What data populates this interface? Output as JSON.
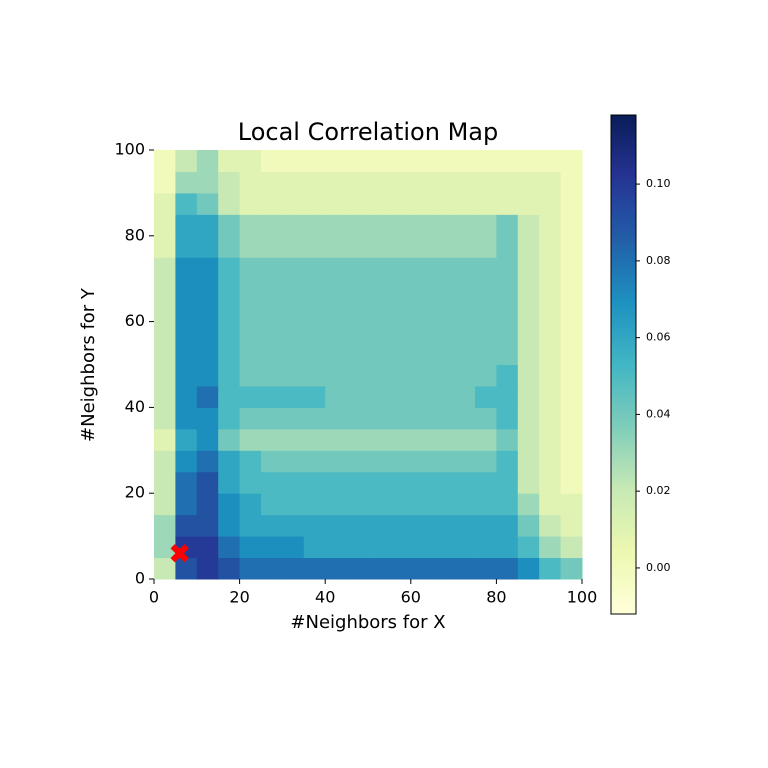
{
  "chart_data": {
    "type": "heatmap",
    "title": "Local Correlation Map",
    "xlabel": "#Neighbors for X",
    "ylabel": "#Neighbors for Y",
    "xlim": [
      0,
      100
    ],
    "ylim": [
      0,
      100
    ],
    "xticks": [
      0,
      20,
      40,
      60,
      80,
      100
    ],
    "yticks": [
      0,
      20,
      40,
      60,
      80,
      100
    ],
    "clim": [
      -0.012,
      0.118
    ],
    "cticks": [
      {
        "value": 0,
        "label": "0.00"
      },
      {
        "value": 0.02,
        "label": "0.02"
      },
      {
        "value": 0.04,
        "label": "0.04"
      },
      {
        "value": 0.06,
        "label": "0.06"
      },
      {
        "value": 0.08,
        "label": "0.08"
      },
      {
        "value": 0.1,
        "label": "0.10"
      }
    ],
    "colorscale": [
      "#ffffd9",
      "#edf8b1",
      "#c7e9b4",
      "#7fcdbb",
      "#41b6c4",
      "#1d91c0",
      "#225ea8",
      "#253494",
      "#081d58"
    ],
    "marker": {
      "x": 6,
      "y": 6,
      "color": "#ff0000"
    },
    "values": [
      [
        0.02,
        0.09,
        0.1,
        0.09,
        0.08,
        0.08,
        0.08,
        0.08,
        0.08,
        0.08,
        0.08,
        0.08,
        0.08,
        0.08,
        0.08,
        0.08,
        0.08,
        0.07,
        0.05,
        0.04
      ],
      [
        0.03,
        0.1,
        0.1,
        0.08,
        0.07,
        0.07,
        0.07,
        0.06,
        0.06,
        0.06,
        0.06,
        0.06,
        0.06,
        0.06,
        0.06,
        0.06,
        0.06,
        0.05,
        0.03,
        0.02
      ],
      [
        0.03,
        0.09,
        0.09,
        0.07,
        0.06,
        0.06,
        0.06,
        0.06,
        0.06,
        0.06,
        0.06,
        0.06,
        0.06,
        0.06,
        0.06,
        0.06,
        0.06,
        0.04,
        0.02,
        0.01
      ],
      [
        0.02,
        0.08,
        0.09,
        0.07,
        0.06,
        0.05,
        0.05,
        0.05,
        0.05,
        0.05,
        0.05,
        0.05,
        0.05,
        0.05,
        0.05,
        0.05,
        0.05,
        0.03,
        0.01,
        0.01
      ],
      [
        0.02,
        0.08,
        0.09,
        0.06,
        0.05,
        0.05,
        0.05,
        0.05,
        0.05,
        0.05,
        0.05,
        0.05,
        0.05,
        0.05,
        0.05,
        0.05,
        0.05,
        0.02,
        0.01,
        0.0
      ],
      [
        0.02,
        0.07,
        0.08,
        0.06,
        0.05,
        0.04,
        0.04,
        0.04,
        0.04,
        0.04,
        0.04,
        0.04,
        0.04,
        0.04,
        0.04,
        0.04,
        0.05,
        0.02,
        0.01,
        0.0
      ],
      [
        0.01,
        0.06,
        0.07,
        0.04,
        0.03,
        0.03,
        0.03,
        0.03,
        0.03,
        0.03,
        0.03,
        0.03,
        0.03,
        0.03,
        0.03,
        0.03,
        0.04,
        0.02,
        0.01,
        0.0
      ],
      [
        0.02,
        0.07,
        0.07,
        0.05,
        0.04,
        0.04,
        0.04,
        0.04,
        0.04,
        0.04,
        0.04,
        0.04,
        0.04,
        0.04,
        0.04,
        0.04,
        0.05,
        0.02,
        0.01,
        0.0
      ],
      [
        0.02,
        0.07,
        0.08,
        0.05,
        0.05,
        0.05,
        0.05,
        0.05,
        0.04,
        0.04,
        0.04,
        0.04,
        0.04,
        0.04,
        0.04,
        0.05,
        0.05,
        0.02,
        0.01,
        0.0
      ],
      [
        0.02,
        0.07,
        0.07,
        0.05,
        0.04,
        0.04,
        0.04,
        0.04,
        0.04,
        0.04,
        0.04,
        0.04,
        0.04,
        0.04,
        0.04,
        0.04,
        0.05,
        0.02,
        0.01,
        0.0
      ],
      [
        0.02,
        0.07,
        0.07,
        0.05,
        0.04,
        0.04,
        0.04,
        0.04,
        0.04,
        0.04,
        0.04,
        0.04,
        0.04,
        0.04,
        0.04,
        0.04,
        0.04,
        0.02,
        0.01,
        0.0
      ],
      [
        0.02,
        0.07,
        0.07,
        0.05,
        0.04,
        0.04,
        0.04,
        0.04,
        0.04,
        0.04,
        0.04,
        0.04,
        0.04,
        0.04,
        0.04,
        0.04,
        0.04,
        0.02,
        0.01,
        0.0
      ],
      [
        0.02,
        0.07,
        0.07,
        0.05,
        0.04,
        0.04,
        0.04,
        0.04,
        0.04,
        0.04,
        0.04,
        0.04,
        0.04,
        0.04,
        0.04,
        0.04,
        0.04,
        0.02,
        0.01,
        0.0
      ],
      [
        0.02,
        0.07,
        0.07,
        0.05,
        0.04,
        0.04,
        0.04,
        0.04,
        0.04,
        0.04,
        0.04,
        0.04,
        0.04,
        0.04,
        0.04,
        0.04,
        0.04,
        0.02,
        0.01,
        0.0
      ],
      [
        0.02,
        0.07,
        0.07,
        0.05,
        0.04,
        0.04,
        0.04,
        0.04,
        0.04,
        0.04,
        0.04,
        0.04,
        0.04,
        0.04,
        0.04,
        0.04,
        0.04,
        0.02,
        0.01,
        0.0
      ],
      [
        0.01,
        0.06,
        0.06,
        0.04,
        0.03,
        0.03,
        0.03,
        0.03,
        0.03,
        0.03,
        0.03,
        0.03,
        0.03,
        0.03,
        0.03,
        0.03,
        0.04,
        0.02,
        0.01,
        0.0
      ],
      [
        0.01,
        0.06,
        0.06,
        0.04,
        0.03,
        0.03,
        0.03,
        0.03,
        0.03,
        0.03,
        0.03,
        0.03,
        0.03,
        0.03,
        0.03,
        0.03,
        0.04,
        0.02,
        0.01,
        0.0
      ],
      [
        0.01,
        0.05,
        0.04,
        0.02,
        0.01,
        0.01,
        0.01,
        0.01,
        0.01,
        0.01,
        0.01,
        0.01,
        0.01,
        0.01,
        0.01,
        0.01,
        0.01,
        0.01,
        0.01,
        0.0
      ],
      [
        0.0,
        0.03,
        0.03,
        0.02,
        0.01,
        0.01,
        0.01,
        0.01,
        0.01,
        0.01,
        0.01,
        0.01,
        0.01,
        0.01,
        0.01,
        0.01,
        0.01,
        0.01,
        0.01,
        0.0
      ],
      [
        0.0,
        0.02,
        0.03,
        0.01,
        0.01,
        0.0,
        0.0,
        0.0,
        0.0,
        0.0,
        0.0,
        0.0,
        0.0,
        0.0,
        0.0,
        0.0,
        0.0,
        0.0,
        0.0,
        0.0
      ]
    ]
  }
}
